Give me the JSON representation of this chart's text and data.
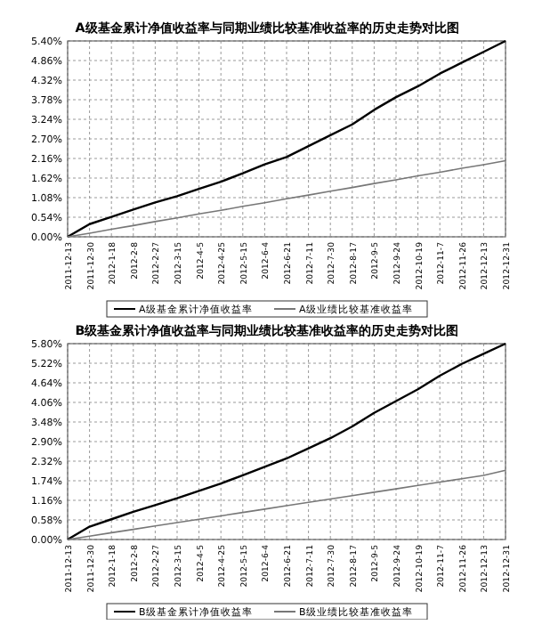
{
  "chart_data": [
    {
      "type": "line",
      "title": "A级基金累计净值收益率与同期业绩比较基准收益率的历史走势对比图",
      "categories": [
        "2011-12-13",
        "2011-12-30",
        "2012-1-18",
        "2012-2-8",
        "2012-2-27",
        "2012-3-15",
        "2012-4-5",
        "2012-4-25",
        "2012-5-15",
        "2012-6-4",
        "2012-6-21",
        "2012-7-11",
        "2012-7-30",
        "2012-8-17",
        "2012-9-5",
        "2012-9-24",
        "2012-10-19",
        "2012-11-7",
        "2012-11-26",
        "2012-12-13",
        "2012-12-31"
      ],
      "series": [
        {
          "name": "A级基金累计净值收益率",
          "color": "#000000",
          "values": [
            0,
            0.35,
            0.55,
            0.75,
            0.95,
            1.12,
            1.32,
            1.52,
            1.75,
            2.0,
            2.2,
            2.5,
            2.8,
            3.1,
            3.5,
            3.85,
            4.15,
            4.5,
            4.8,
            5.1,
            5.4
          ]
        },
        {
          "name": "A级业绩比较基准收益率",
          "color": "#777777",
          "values": [
            0,
            0.1,
            0.21,
            0.31,
            0.42,
            0.52,
            0.63,
            0.73,
            0.84,
            0.94,
            1.05,
            1.15,
            1.26,
            1.36,
            1.47,
            1.57,
            1.68,
            1.78,
            1.89,
            1.99,
            2.1
          ]
        }
      ],
      "ylim": [
        0,
        5.4
      ],
      "yticks": [
        {
          "value": 0,
          "label": "0.00%"
        },
        {
          "value": 0.54,
          "label": "0.54%"
        },
        {
          "value": 1.08,
          "label": "1.08%"
        },
        {
          "value": 1.62,
          "label": "1.62%"
        },
        {
          "value": 2.16,
          "label": "2.16%"
        },
        {
          "value": 2.7,
          "label": "2.70%"
        },
        {
          "value": 3.24,
          "label": "3.24%"
        },
        {
          "value": 3.78,
          "label": "3.78%"
        },
        {
          "value": 4.32,
          "label": "4.32%"
        },
        {
          "value": 4.86,
          "label": "4.86%"
        },
        {
          "value": 5.4,
          "label": "5.40%"
        }
      ],
      "grid": true,
      "legend": "bottom"
    },
    {
      "type": "line",
      "title": "B级基金累计净值收益率与同期业绩比较基准收益率的历史走势对比图",
      "categories": [
        "2011-12-13",
        "2011-12-30",
        "2012-1-18",
        "2012-2-8",
        "2012-2-27",
        "2012-3-15",
        "2012-4-5",
        "2012-4-25",
        "2012-5-15",
        "2012-6-4",
        "2012-6-21",
        "2012-7-11",
        "2012-7-30",
        "2012-8-17",
        "2012-9-5",
        "2012-9-24",
        "2012-10-19",
        "2012-11-7",
        "2012-11-26",
        "2012-12-13",
        "2012-12-31"
      ],
      "series": [
        {
          "name": "B级基金累计净值收益率",
          "color": "#000000",
          "values": [
            0,
            0.38,
            0.6,
            0.82,
            1.02,
            1.22,
            1.44,
            1.66,
            1.9,
            2.15,
            2.4,
            2.7,
            3.0,
            3.35,
            3.75,
            4.1,
            4.45,
            4.85,
            5.2,
            5.5,
            5.8
          ]
        },
        {
          "name": "B级业绩比较基准收益率",
          "color": "#777777",
          "values": [
            0,
            0.1,
            0.2,
            0.3,
            0.4,
            0.5,
            0.6,
            0.7,
            0.8,
            0.9,
            1.0,
            1.1,
            1.2,
            1.3,
            1.4,
            1.5,
            1.6,
            1.7,
            1.8,
            1.9,
            2.05
          ]
        }
      ],
      "ylim": [
        0,
        5.8
      ],
      "yticks": [
        {
          "value": 0,
          "label": "0.00%"
        },
        {
          "value": 0.58,
          "label": "0.58%"
        },
        {
          "value": 1.16,
          "label": "1.16%"
        },
        {
          "value": 1.74,
          "label": "1.74%"
        },
        {
          "value": 2.32,
          "label": "2.32%"
        },
        {
          "value": 2.9,
          "label": "2.90%"
        },
        {
          "value": 3.48,
          "label": "3.48%"
        },
        {
          "value": 4.06,
          "label": "4.06%"
        },
        {
          "value": 4.64,
          "label": "4.64%"
        },
        {
          "value": 5.22,
          "label": "5.22%"
        },
        {
          "value": 5.8,
          "label": "5.80%"
        }
      ],
      "grid": true,
      "legend": "bottom"
    }
  ]
}
